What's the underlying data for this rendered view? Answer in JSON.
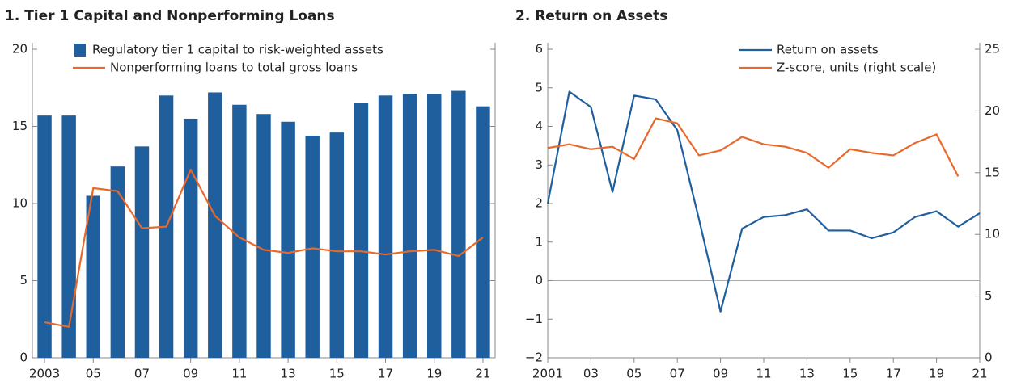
{
  "chart_data": [
    {
      "type": "bar",
      "title": "1. Tier 1 Capital and Nonperforming Loans",
      "categories": [
        "2003",
        null,
        "05",
        null,
        "07",
        null,
        "09",
        null,
        "11",
        null,
        "13",
        null,
        "15",
        null,
        "17",
        null,
        "19",
        null,
        "21"
      ],
      "series": [
        {
          "name": "Regulatory tier 1 capital to risk-weighted assets",
          "type": "bar",
          "color": "#1f5f9e",
          "values": [
            15.7,
            15.7,
            10.5,
            12.4,
            13.7,
            17.0,
            15.5,
            17.2,
            16.4,
            15.8,
            15.3,
            14.4,
            14.6,
            16.5,
            17.0,
            17.1,
            17.1,
            17.3,
            16.3
          ]
        },
        {
          "name": "Nonperforming loans to total gross loans",
          "type": "line",
          "color": "#e8692c",
          "values": [
            2.3,
            2.0,
            11.0,
            10.8,
            8.4,
            8.5,
            12.2,
            9.2,
            7.8,
            7.0,
            6.8,
            7.1,
            6.9,
            6.9,
            6.7,
            6.9,
            7.0,
            6.6,
            7.8
          ]
        }
      ],
      "ylim": [
        0,
        20
      ],
      "yticks": [
        0,
        5,
        10,
        15,
        20
      ],
      "legend": "upper left"
    },
    {
      "type": "line",
      "title": "2. Return on Assets",
      "categories": [
        "2001",
        null,
        "03",
        null,
        "05",
        null,
        "07",
        null,
        "09",
        null,
        "11",
        null,
        "13",
        null,
        "15",
        null,
        "17",
        null,
        "19",
        null,
        "21"
      ],
      "series": [
        {
          "name": "Return on assets",
          "type": "line",
          "color": "#1f5f9e",
          "values": [
            2.0,
            4.9,
            4.5,
            2.3,
            4.8,
            4.7,
            3.9,
            1.6,
            -0.8,
            1.35,
            1.65,
            1.7,
            1.85,
            1.3,
            1.3,
            1.1,
            1.25,
            1.65,
            1.8,
            1.4,
            1.75
          ]
        },
        {
          "name": "Z-score, units (right scale)",
          "type": "line",
          "color": "#e8692c",
          "axis": "y2",
          "values": [
            17.0,
            17.3,
            16.9,
            17.1,
            16.1,
            19.4,
            19.0,
            16.4,
            16.8,
            17.9,
            17.3,
            17.1,
            16.6,
            15.4,
            16.9,
            16.6,
            16.4,
            17.4,
            18.1,
            14.7,
            null
          ]
        }
      ],
      "ylim": [
        -2,
        6
      ],
      "yticks": [
        {
          "value": -2,
          "label": "−2"
        },
        {
          "value": -1,
          "label": "−1"
        },
        0,
        1,
        2,
        3,
        4,
        5,
        6
      ],
      "y2lim": [
        0,
        25
      ],
      "y2ticks": [
        0,
        5,
        10,
        15,
        20,
        25
      ],
      "legend": "upper right"
    }
  ]
}
